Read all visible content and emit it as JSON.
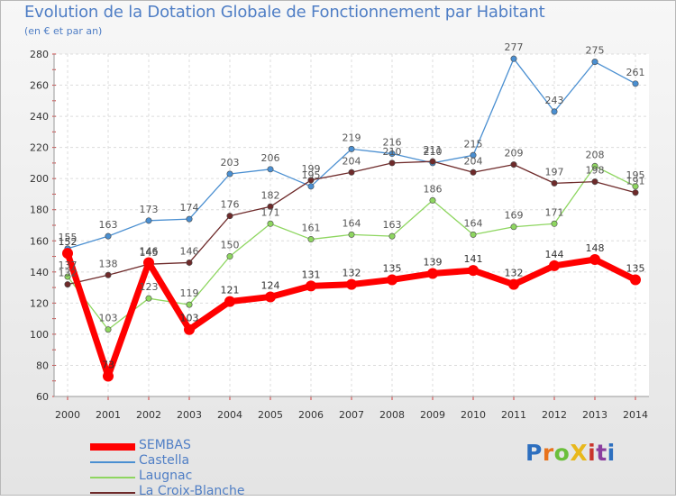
{
  "header": {
    "title": "Evolution de la Dotation Globale de Fonctionnement par Habitant",
    "subtitle": "(en € et par an)"
  },
  "logo": {
    "text": "ProXiti",
    "colors": [
      "#2d6fbf",
      "#e8731c",
      "#6bbf3b",
      "#e8b81c",
      "#c9342c",
      "#8b3d9e",
      "#2d6fbf"
    ]
  },
  "chart_data": {
    "type": "line",
    "title": "Evolution de la Dotation Globale de Fonctionnement par Habitant",
    "subtitle": "(en € et par an)",
    "xlabel": "",
    "ylabel": "",
    "x": [
      "2000",
      "2001",
      "2002",
      "2003",
      "2004",
      "2005",
      "2006",
      "2007",
      "2008",
      "2009",
      "2010",
      "2011",
      "2012",
      "2013",
      "2014"
    ],
    "ylim": [
      60,
      280
    ],
    "yticks": [
      60,
      80,
      100,
      120,
      140,
      160,
      180,
      200,
      220,
      240,
      260,
      280
    ],
    "grid": true,
    "legend": "bottom-left",
    "series": [
      {
        "name": "SEMBAS",
        "color": "#ff0000",
        "values": [
          152,
          73,
          146,
          103,
          121,
          124,
          131,
          132,
          135,
          139,
          141,
          132,
          144,
          148,
          135
        ]
      },
      {
        "name": "Castella",
        "color": "#4a8fd1",
        "values": [
          155,
          163,
          173,
          174,
          203,
          206,
          195,
          219,
          216,
          210,
          215,
          277,
          243,
          275,
          261
        ]
      },
      {
        "name": "Laugnac",
        "color": "#8ed660",
        "values": [
          137,
          103,
          123,
          119,
          150,
          171,
          161,
          164,
          163,
          186,
          164,
          169,
          171,
          208,
          195
        ]
      },
      {
        "name": "La Croix-Blanche",
        "color": "#6e2a2a",
        "values": [
          132,
          138,
          145,
          146,
          176,
          182,
          199,
          204,
          210,
          211,
          204,
          209,
          197,
          198,
          191
        ]
      }
    ]
  }
}
